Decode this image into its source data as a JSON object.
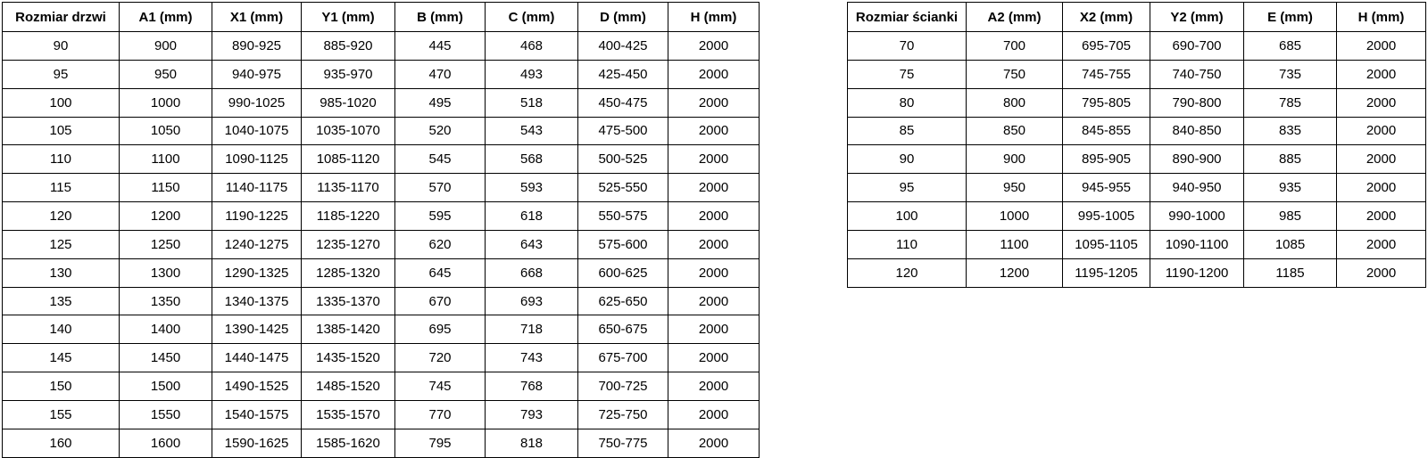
{
  "door_table": {
    "headers": [
      "Rozmiar drzwi",
      "A1 (mm)",
      "X1 (mm)",
      "Y1 (mm)",
      "B (mm)",
      "C (mm)",
      "D (mm)",
      "H (mm)"
    ],
    "rows": [
      [
        "90",
        "900",
        "890-925",
        "885-920",
        "445",
        "468",
        "400-425",
        "2000"
      ],
      [
        "95",
        "950",
        "940-975",
        "935-970",
        "470",
        "493",
        "425-450",
        "2000"
      ],
      [
        "100",
        "1000",
        "990-1025",
        "985-1020",
        "495",
        "518",
        "450-475",
        "2000"
      ],
      [
        "105",
        "1050",
        "1040-1075",
        "1035-1070",
        "520",
        "543",
        "475-500",
        "2000"
      ],
      [
        "110",
        "1100",
        "1090-1125",
        "1085-1120",
        "545",
        "568",
        "500-525",
        "2000"
      ],
      [
        "115",
        "1150",
        "1140-1175",
        "1135-1170",
        "570",
        "593",
        "525-550",
        "2000"
      ],
      [
        "120",
        "1200",
        "1190-1225",
        "1185-1220",
        "595",
        "618",
        "550-575",
        "2000"
      ],
      [
        "125",
        "1250",
        "1240-1275",
        "1235-1270",
        "620",
        "643",
        "575-600",
        "2000"
      ],
      [
        "130",
        "1300",
        "1290-1325",
        "1285-1320",
        "645",
        "668",
        "600-625",
        "2000"
      ],
      [
        "135",
        "1350",
        "1340-1375",
        "1335-1370",
        "670",
        "693",
        "625-650",
        "2000"
      ],
      [
        "140",
        "1400",
        "1390-1425",
        "1385-1420",
        "695",
        "718",
        "650-675",
        "2000"
      ],
      [
        "145",
        "1450",
        "1440-1475",
        "1435-1520",
        "720",
        "743",
        "675-700",
        "2000"
      ],
      [
        "150",
        "1500",
        "1490-1525",
        "1485-1520",
        "745",
        "768",
        "700-725",
        "2000"
      ],
      [
        "155",
        "1550",
        "1540-1575",
        "1535-1570",
        "770",
        "793",
        "725-750",
        "2000"
      ],
      [
        "160",
        "1600",
        "1590-1625",
        "1585-1620",
        "795",
        "818",
        "750-775",
        "2000"
      ]
    ]
  },
  "wall_table": {
    "headers": [
      "Rozmiar ścianki",
      "A2 (mm)",
      "X2 (mm)",
      "Y2 (mm)",
      "E (mm)",
      "H (mm)"
    ],
    "rows": [
      [
        "70",
        "700",
        "695-705",
        "690-700",
        "685",
        "2000"
      ],
      [
        "75",
        "750",
        "745-755",
        "740-750",
        "735",
        "2000"
      ],
      [
        "80",
        "800",
        "795-805",
        "790-800",
        "785",
        "2000"
      ],
      [
        "85",
        "850",
        "845-855",
        "840-850",
        "835",
        "2000"
      ],
      [
        "90",
        "900",
        "895-905",
        "890-900",
        "885",
        "2000"
      ],
      [
        "95",
        "950",
        "945-955",
        "940-950",
        "935",
        "2000"
      ],
      [
        "100",
        "1000",
        "995-1005",
        "990-1000",
        "985",
        "2000"
      ],
      [
        "110",
        "1100",
        "1095-1105",
        "1090-1100",
        "1085",
        "2000"
      ],
      [
        "120",
        "1200",
        "1195-1205",
        "1190-1200",
        "1185",
        "2000"
      ]
    ]
  },
  "colors": {
    "border": "#000000",
    "text": "#000000",
    "background": "#ffffff"
  }
}
